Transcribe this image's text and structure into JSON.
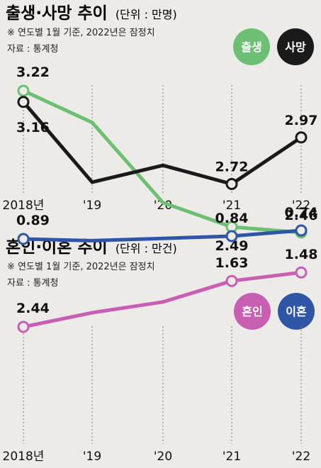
{
  "charts": [
    {
      "title": "출생·사망 추이",
      "unit": "(단위 : 만명)",
      "note": "※ 연도별 1월 기준, 2022년은 잠정치",
      "source": "자료 : 통계청",
      "legend": [
        {
          "label": "출생",
          "color": "#6cbf73"
        },
        {
          "label": "사망",
          "color": "#1a1a1a"
        }
      ]
    },
    {
      "title": "혼인·이혼 추이",
      "unit": "(단위 : 만건)",
      "note": "※ 연도별 1월 기준, 2022년은 잠정치",
      "source": "자료 : 통계청",
      "legend": [
        {
          "label": "혼인",
          "color": "#c95fb3"
        },
        {
          "label": "이혼",
          "color": "#2f56a6"
        }
      ]
    }
  ],
  "chart_data": [
    {
      "type": "line",
      "title": "출생·사망 추이",
      "unit": "만명",
      "categories": [
        "2018년",
        "'19",
        "'20",
        "'21",
        "'22"
      ],
      "series": [
        {
          "name": "출생",
          "color": "#6cbf73",
          "values": [
            3.22,
            3.05,
            2.62,
            2.49,
            2.46
          ],
          "labels": [
            "3.22",
            "",
            "",
            "2.49",
            "2.46"
          ]
        },
        {
          "name": "사망",
          "color": "#1a1a1a",
          "values": [
            3.16,
            2.73,
            2.82,
            2.72,
            2.97
          ],
          "labels": [
            "3.16",
            "",
            "",
            "2.72",
            "2.97"
          ]
        }
      ],
      "grid": "vertical-dotted",
      "legend_position": "top-right"
    },
    {
      "type": "line",
      "title": "혼인·이혼 추이",
      "unit": "만건",
      "categories": [
        "2018년",
        "'19",
        "'20",
        "'21",
        "'22"
      ],
      "series": [
        {
          "name": "혼인",
          "color": "#c95fb3",
          "values": [
            2.44,
            2.19,
            2.0,
            1.63,
            1.48
          ],
          "labels": [
            "2.44",
            "",
            "",
            "1.63",
            "1.48"
          ]
        },
        {
          "name": "이혼",
          "color": "#2f56a6",
          "values": [
            0.89,
            0.92,
            0.88,
            0.84,
            0.74
          ],
          "labels": [
            "0.89",
            "",
            "",
            "0.84",
            "0.74"
          ]
        }
      ],
      "grid": "vertical-dotted",
      "legend_position": "top-right"
    }
  ]
}
